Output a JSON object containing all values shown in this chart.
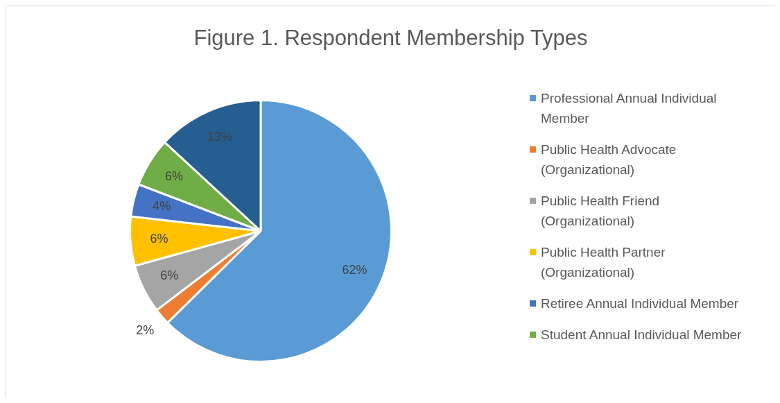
{
  "chart_data": {
    "type": "pie",
    "title": "Figure 1. Respondent Membership Types",
    "categories": [
      "Professional Annual Individual Member",
      "Public Health Advocate (Organizational)",
      "Public Health Friend (Organizational)",
      "Public Health Partner (Organizational)",
      "Retiree Annual Individual Member",
      "Student Annual Individual Member",
      null
    ],
    "values": [
      62,
      2,
      6,
      6,
      4,
      6,
      13
    ],
    "colors": [
      "#5b9bd5",
      "#ed7d31",
      "#a5a5a5",
      "#ffc000",
      "#4472c4",
      "#70ad47",
      "#255e91"
    ],
    "value_labels": [
      "62%",
      "2%",
      "6%",
      "6%",
      "4%",
      "6%",
      "13%"
    ],
    "legend": "right"
  }
}
